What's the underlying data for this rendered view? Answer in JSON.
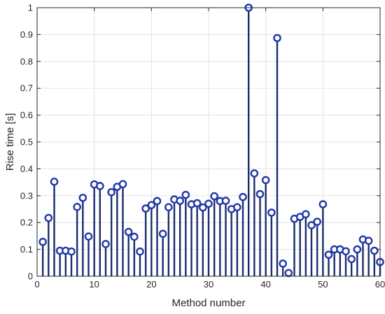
{
  "chart_data": {
    "type": "stem",
    "xlabel": "Method number",
    "ylabel": "Rise time [s]",
    "xlim": [
      0,
      60
    ],
    "ylim": [
      0,
      1
    ],
    "xticks": [
      "0",
      "10",
      "20",
      "30",
      "40",
      "50",
      "60"
    ],
    "yticks": [
      "0",
      "0.1",
      "0.2",
      "0.3",
      "0.4",
      "0.5",
      "0.6",
      "0.7",
      "0.8",
      "0.9",
      "1"
    ],
    "grid": true,
    "colors": {
      "stem": "#1a2c6e",
      "marker_edge": "#1f37a8",
      "grid": "#e3e3e3",
      "axis": "#262626"
    },
    "x": [
      1,
      2,
      3,
      4,
      5,
      6,
      7,
      8,
      9,
      10,
      11,
      12,
      13,
      14,
      15,
      16,
      17,
      18,
      19,
      20,
      21,
      22,
      23,
      24,
      25,
      26,
      27,
      28,
      29,
      30,
      31,
      32,
      33,
      34,
      35,
      36,
      37,
      38,
      39,
      40,
      41,
      42,
      43,
      44,
      45,
      46,
      47,
      48,
      49,
      50,
      51,
      52,
      53,
      54,
      55,
      56,
      57,
      58,
      59,
      60
    ],
    "values": [
      0.128,
      0.217,
      0.352,
      0.095,
      0.095,
      0.092,
      0.258,
      0.292,
      0.148,
      0.342,
      0.336,
      0.12,
      0.313,
      0.333,
      0.343,
      0.165,
      0.147,
      0.092,
      0.252,
      0.265,
      0.28,
      0.158,
      0.257,
      0.286,
      0.281,
      0.303,
      0.268,
      0.272,
      0.256,
      0.27,
      0.298,
      0.28,
      0.281,
      0.25,
      0.257,
      0.295,
      1.0,
      0.383,
      0.306,
      0.358,
      0.237,
      0.887,
      0.047,
      0.012,
      0.214,
      0.221,
      0.231,
      0.19,
      0.203,
      0.268,
      0.08,
      0.1,
      0.1,
      0.093,
      0.064,
      0.1,
      0.137,
      0.132,
      0.095,
      0.053
    ]
  }
}
